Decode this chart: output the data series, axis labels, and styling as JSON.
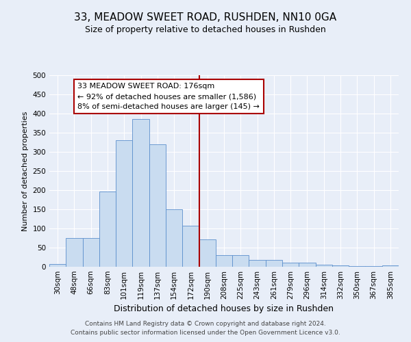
{
  "title": "33, MEADOW SWEET ROAD, RUSHDEN, NN10 0GA",
  "subtitle": "Size of property relative to detached houses in Rushden",
  "xlabel": "Distribution of detached houses by size in Rushden",
  "ylabel": "Number of detached properties",
  "bar_labels": [
    "30sqm",
    "48sqm",
    "66sqm",
    "83sqm",
    "101sqm",
    "119sqm",
    "137sqm",
    "154sqm",
    "172sqm",
    "190sqm",
    "208sqm",
    "225sqm",
    "243sqm",
    "261sqm",
    "279sqm",
    "296sqm",
    "314sqm",
    "332sqm",
    "350sqm",
    "367sqm",
    "385sqm"
  ],
  "bar_heights": [
    8,
    75,
    75,
    197,
    330,
    385,
    320,
    150,
    108,
    72,
    30,
    30,
    18,
    18,
    10,
    10,
    5,
    3,
    1,
    1,
    3
  ],
  "bar_color": "#c9dcf0",
  "bar_edge_color": "#5b8fcc",
  "vline_index": 8,
  "vline_color": "#aa0000",
  "annotation_text": "33 MEADOW SWEET ROAD: 176sqm\n← 92% of detached houses are smaller (1,586)\n8% of semi-detached houses are larger (145) →",
  "annotation_box_color": "#aa0000",
  "ylim": [
    0,
    500
  ],
  "yticks": [
    0,
    50,
    100,
    150,
    200,
    250,
    300,
    350,
    400,
    450,
    500
  ],
  "footer1": "Contains HM Land Registry data © Crown copyright and database right 2024.",
  "footer2": "Contains public sector information licensed under the Open Government Licence v3.0.",
  "bg_color": "#e8eef8",
  "plot_bg_color": "#e8eef8",
  "grid_color": "#ffffff",
  "title_fontsize": 11,
  "subtitle_fontsize": 9,
  "xlabel_fontsize": 9,
  "ylabel_fontsize": 8,
  "tick_fontsize": 7.5,
  "annotation_fontsize": 8
}
